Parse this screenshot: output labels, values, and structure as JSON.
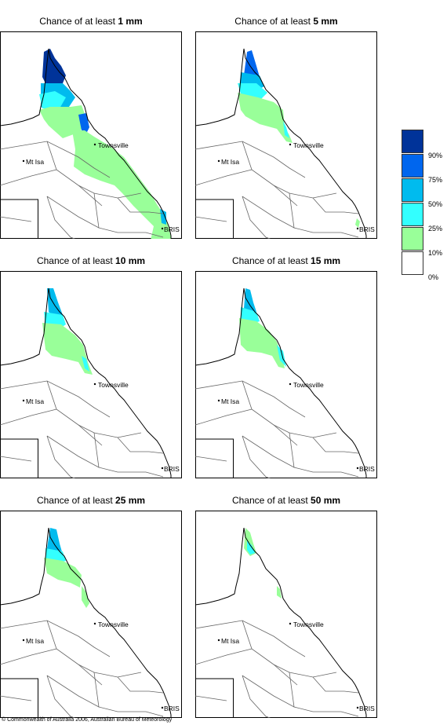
{
  "panels": [
    {
      "title_prefix": "Chance of at least ",
      "amount": "1 mm",
      "level": 0
    },
    {
      "title_prefix": "Chance of at least ",
      "amount": "5 mm",
      "level": 1
    },
    {
      "title_prefix": "Chance of at least ",
      "amount": "10 mm",
      "level": 2
    },
    {
      "title_prefix": "Chance of at least ",
      "amount": "15 mm",
      "level": 3
    },
    {
      "title_prefix": "Chance of at least ",
      "amount": "25 mm",
      "level": 4
    },
    {
      "title_prefix": "Chance of at least ",
      "amount": "50 mm",
      "level": 5
    }
  ],
  "places": {
    "townsville": "Townsville",
    "mt_isa": "Mt Isa",
    "brisbane": "BRIS"
  },
  "legend": {
    "labels": [
      "90%",
      "75%",
      "50%",
      "25%",
      "10%",
      "0%"
    ],
    "colors": [
      "#003399",
      "#0066ee",
      "#00bbee",
      "#33ffff",
      "#99ff99",
      "#ffffff"
    ]
  },
  "copyright": "© Commonwealth of Australia 2006, Australian Bureau of Meteorology"
}
